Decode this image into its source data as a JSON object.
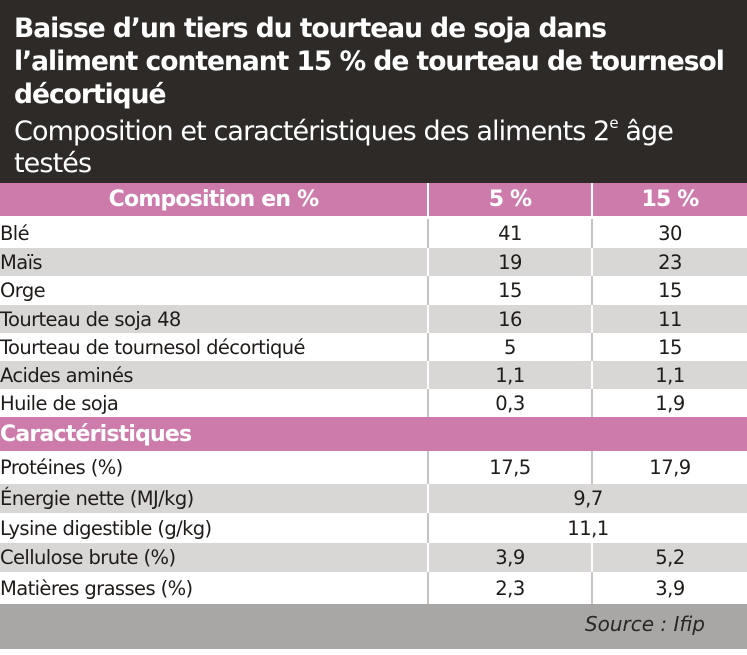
{
  "title": "Baisse d’un tiers du tourteau de soja dans l’aliment contenant 15 % de tourteau de tournesol décortiqué",
  "subtitle": "Composition et caractéristiques des aliments 2",
  "subtitle_sup": "e",
  "subtitle_end": " âge testés",
  "columns": [
    "Composition en %",
    "5 %",
    "15 %"
  ],
  "composition": [
    {
      "label": "Blé",
      "v5": "41",
      "v15": "30"
    },
    {
      "label": "Maïs",
      "v5": "19",
      "v15": "23"
    },
    {
      "label": "Orge",
      "v5": "15",
      "v15": "15"
    },
    {
      "label": "Tourteau de soja 48",
      "v5": "16",
      "v15": "11"
    },
    {
      "label": "Tourteau de tournesol décortiqué",
      "v5": "5",
      "v15": "15"
    },
    {
      "label": "Acides aminés",
      "v5": "1,1",
      "v15": "1,1"
    },
    {
      "label": "Huile de soja",
      "v5": "0,3",
      "v15": "1,9"
    }
  ],
  "section_label": "Caractéristiques",
  "characteristics": [
    {
      "label": "Protéines (%)",
      "v5": "17,5",
      "v15": "17,9"
    },
    {
      "label": "Énergie nette (MJ/kg)",
      "both": "9,7"
    },
    {
      "label": "Lysine digestible (g/kg)",
      "both": "11,1"
    },
    {
      "label": "Cellulose brute (%)",
      "v5": "3,9",
      "v15": "5,2"
    },
    {
      "label": "Matières grasses (%)",
      "v5": "2,3",
      "v15": "3,9"
    }
  ],
  "source": "Source : Ifip",
  "colors": {
    "header_bg": "#2e2a28",
    "accent_pink": "#cd7bab",
    "row_grey": "#d9d7d6",
    "footer_grey": "#a9a7a6"
  }
}
